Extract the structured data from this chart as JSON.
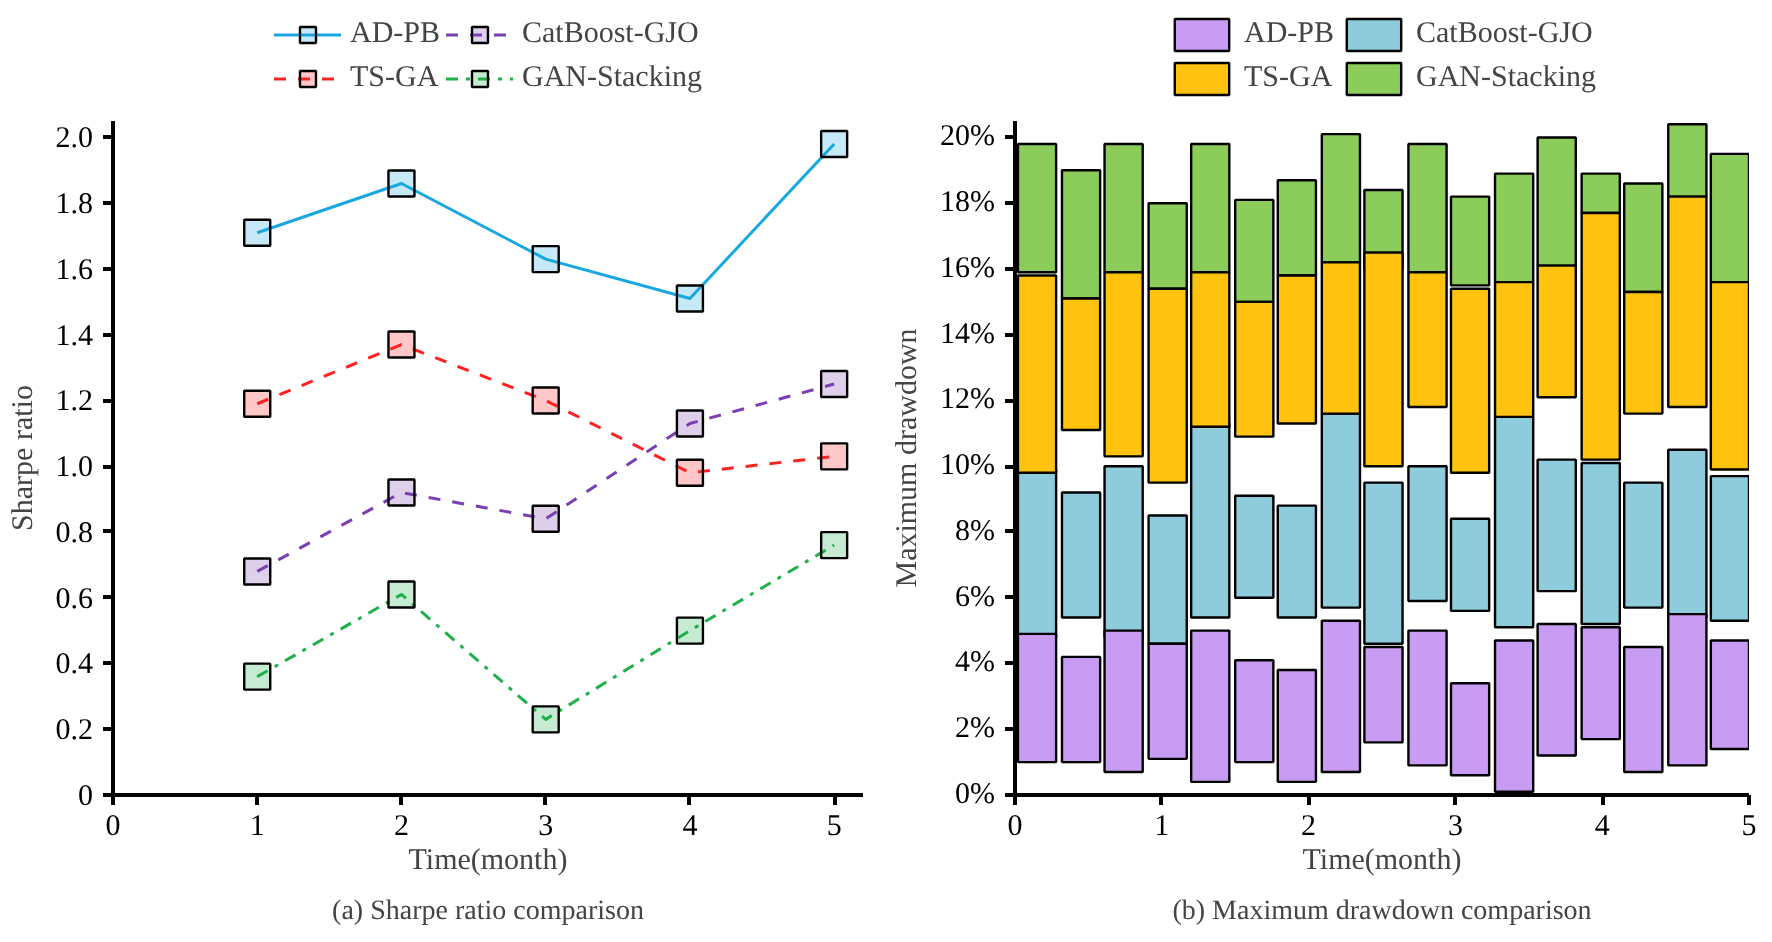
{
  "chart_data": [
    {
      "type": "line",
      "xlabel": "Time(month)",
      "ylabel": "Sharpe ratio",
      "x": [
        1,
        2,
        3,
        4,
        5
      ],
      "xlim": [
        0,
        5.2
      ],
      "ylim": [
        0,
        2.05
      ],
      "xticks": [
        0,
        1,
        2,
        3,
        4,
        5
      ],
      "yticks": [
        0,
        0.2,
        0.4,
        0.6,
        0.8,
        {
          "value": 1,
          "label": "1.0"
        },
        1.2,
        1.4,
        1.6,
        1.8,
        {
          "value": 2,
          "label": "2.0"
        }
      ],
      "marker": "square",
      "legend": "top",
      "annotations": [
        "(a) Sharpe ratio comparison"
      ],
      "series": [
        {
          "name": "AD-PB",
          "color": "#1aa7e0",
          "line_style": "solid",
          "values": [
            1.71,
            1.86,
            1.63,
            1.51,
            1.98
          ]
        },
        {
          "name": "TS-GA",
          "color": "#ff2020",
          "line_style": "dashed",
          "values": [
            1.19,
            1.37,
            1.2,
            0.98,
            1.03
          ]
        },
        {
          "name": "CatBoost-GJO",
          "color": "#7a3fb0",
          "line_style": "dashed",
          "values": [
            0.68,
            0.92,
            0.84,
            1.13,
            1.25
          ]
        },
        {
          "name": "GAN-Stacking",
          "color": "#20b04a",
          "line_style": "dotted",
          "values": [
            0.36,
            0.61,
            0.23,
            0.5,
            0.76
          ]
        }
      ]
    },
    {
      "type": "bar",
      "xlabel": "Time(month)",
      "ylabel": "Maximum drawdown",
      "x": [
        0.15,
        0.45,
        0.74,
        1.04,
        1.33,
        1.63,
        1.92,
        2.22,
        2.51,
        2.81,
        3.1,
        3.4,
        3.69,
        3.99,
        4.28,
        4.58,
        4.87
      ],
      "xlim": [
        0,
        5
      ],
      "ylim": [
        0,
        20.5
      ],
      "xticks": [
        0,
        1,
        2,
        3,
        4,
        5
      ],
      "yticks": [
        {
          "value": 0,
          "label": "0%"
        },
        {
          "value": 2,
          "label": "2%"
        },
        {
          "value": 4,
          "label": "4%"
        },
        {
          "value": 6,
          "label": "6%"
        },
        {
          "value": 8,
          "label": "8%"
        },
        {
          "value": 10,
          "label": "10%"
        },
        {
          "value": 12,
          "label": "12%"
        },
        {
          "value": 14,
          "label": "14%"
        },
        {
          "value": 16,
          "label": "16%"
        },
        {
          "value": 18,
          "label": "18%"
        },
        {
          "value": 20,
          "label": "20%"
        }
      ],
      "legend": "top",
      "annotations": [
        "(b) Maximum drawdown comparison"
      ],
      "series": [
        {
          "name": "AD-PB",
          "color": "#c89cf2",
          "base": [
            1.0,
            1.0,
            0.7,
            1.1,
            0.4,
            1.0,
            0.4,
            0.7,
            1.6,
            0.9,
            0.6,
            0.1,
            1.2,
            1.7,
            0.7,
            0.9,
            1.4
          ],
          "values": [
            3.9,
            3.2,
            4.3,
            3.5,
            4.6,
            3.1,
            3.4,
            4.6,
            2.9,
            4.1,
            2.8,
            4.6,
            4.0,
            3.4,
            3.8,
            4.6,
            3.3
          ]
        },
        {
          "name": "TS-GA",
          "color": "#ffc20e",
          "base": [
            9.8,
            11.1,
            10.3,
            9.5,
            11.2,
            10.9,
            11.3,
            11.6,
            10.0,
            11.8,
            9.8,
            11.5,
            12.1,
            10.2,
            11.6,
            11.8,
            9.9
          ],
          "values": [
            6.0,
            4.0,
            5.6,
            5.9,
            4.7,
            4.1,
            4.5,
            4.6,
            6.5,
            4.1,
            5.6,
            4.1,
            4.0,
            7.5,
            3.7,
            6.4,
            5.7
          ]
        },
        {
          "name": "CatBoost-GJO",
          "color": "#8ecbdb",
          "base": [
            4.8,
            5.4,
            4.8,
            4.6,
            5.4,
            6.0,
            5.4,
            5.7,
            4.6,
            5.9,
            5.6,
            5.1,
            6.2,
            5.2,
            5.7,
            5.4,
            5.3
          ],
          "values": [
            5.1,
            3.8,
            5.2,
            3.9,
            5.9,
            3.1,
            3.4,
            5.9,
            4.9,
            4.1,
            2.8,
            6.4,
            4.0,
            4.9,
            3.8,
            5.1,
            4.4
          ]
        },
        {
          "name": "GAN-Stacking",
          "color": "#8ccc5a",
          "base": [
            15.9,
            15.1,
            15.9,
            15.4,
            15.9,
            15.0,
            15.8,
            16.2,
            16.0,
            15.9,
            15.5,
            15.6,
            16.1,
            17.7,
            15.3,
            18.2,
            15.6
          ],
          "values": [
            3.9,
            3.9,
            3.9,
            2.6,
            3.9,
            3.1,
            2.9,
            3.9,
            2.4,
            3.9,
            2.7,
            3.3,
            3.9,
            1.2,
            3.3,
            2.2,
            3.9
          ]
        }
      ]
    }
  ]
}
